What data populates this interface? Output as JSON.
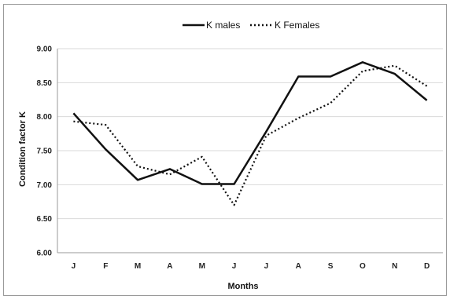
{
  "chart_data": {
    "type": "line",
    "categories": [
      "J",
      "F",
      "M",
      "A",
      "M",
      "J",
      "J",
      "A",
      "S",
      "O",
      "N",
      "D"
    ],
    "xlabel": "Months",
    "ylabel": "Condition factor K",
    "ylim": [
      6.0,
      9.0
    ],
    "yticks": [
      "6.00",
      "6.50",
      "7.00",
      "7.50",
      "8.00",
      "8.50",
      "9.00"
    ],
    "grid": true,
    "legend_position": "top-center",
    "series": [
      {
        "name": "K males",
        "style": "solid",
        "color": "#111111",
        "values": [
          8.05,
          7.52,
          7.07,
          7.23,
          7.01,
          7.01,
          7.78,
          8.59,
          8.59,
          8.8,
          8.63,
          8.24
        ]
      },
      {
        "name": "K Females",
        "style": "dotted",
        "color": "#111111",
        "values": [
          7.93,
          7.88,
          7.27,
          7.15,
          7.41,
          6.7,
          7.72,
          7.98,
          8.2,
          8.67,
          8.75,
          8.45
        ]
      }
    ]
  }
}
